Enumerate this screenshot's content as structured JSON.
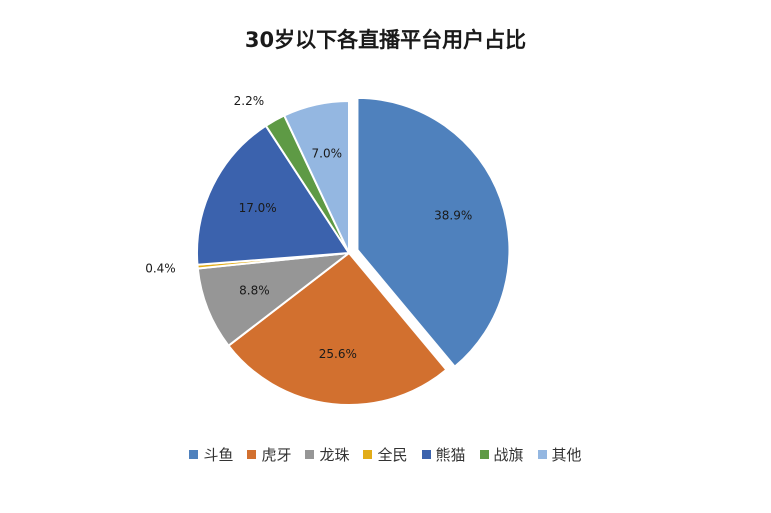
{
  "chart_data": {
    "type": "pie",
    "title": "30岁以下各直播平台用户占比",
    "categories": [
      "斗鱼",
      "虎牙",
      "龙珠",
      "全民",
      "熊猫",
      "战旗",
      "其他"
    ],
    "values": [
      38.9,
      25.6,
      8.8,
      0.4,
      17.0,
      2.2,
      7.0
    ],
    "labels": [
      "38.9%",
      "25.6%",
      "8.8%",
      "0.4%",
      "17.0%",
      "2.2%",
      "7.0%"
    ],
    "colors": [
      "#4F81BD",
      "#D2702F",
      "#969696",
      "#E2AC18",
      "#3B62AD",
      "#5E9A45",
      "#94B7E1"
    ],
    "exploded": "斗鱼",
    "legend_position": "bottom"
  }
}
